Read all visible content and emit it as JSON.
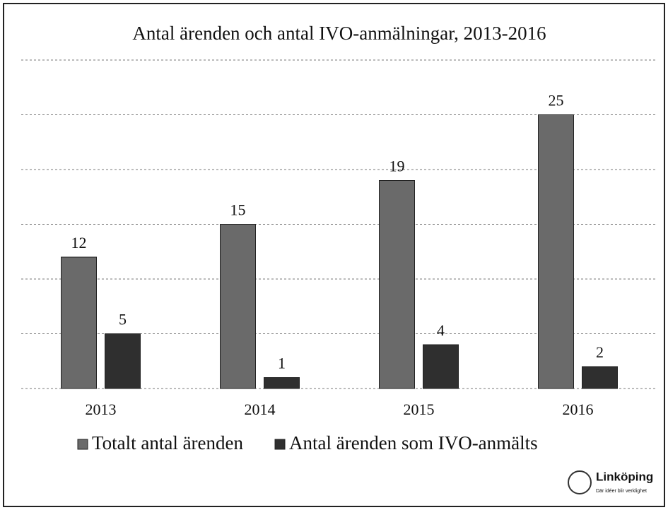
{
  "chart_data": {
    "type": "bar",
    "title": "Antal ärenden och antal IVO-anmälningar, 2013-2016",
    "categories": [
      "2013",
      "2014",
      "2015",
      "2016"
    ],
    "series": [
      {
        "name": "Totalt antal ärenden",
        "color": "#6a6a6a",
        "values": [
          12,
          15,
          19,
          25
        ]
      },
      {
        "name": "Antal ärenden som IVO-anmälts",
        "color": "#2f2f2f",
        "values": [
          5,
          1,
          4,
          2
        ]
      }
    ],
    "ylim": [
      0,
      30
    ],
    "yticks": [
      0,
      5,
      10,
      15,
      20,
      25,
      30
    ],
    "grid": true,
    "legend": "bottom"
  },
  "logo": {
    "name": "Linköping",
    "tagline": "Där idéer blir verklighet"
  }
}
